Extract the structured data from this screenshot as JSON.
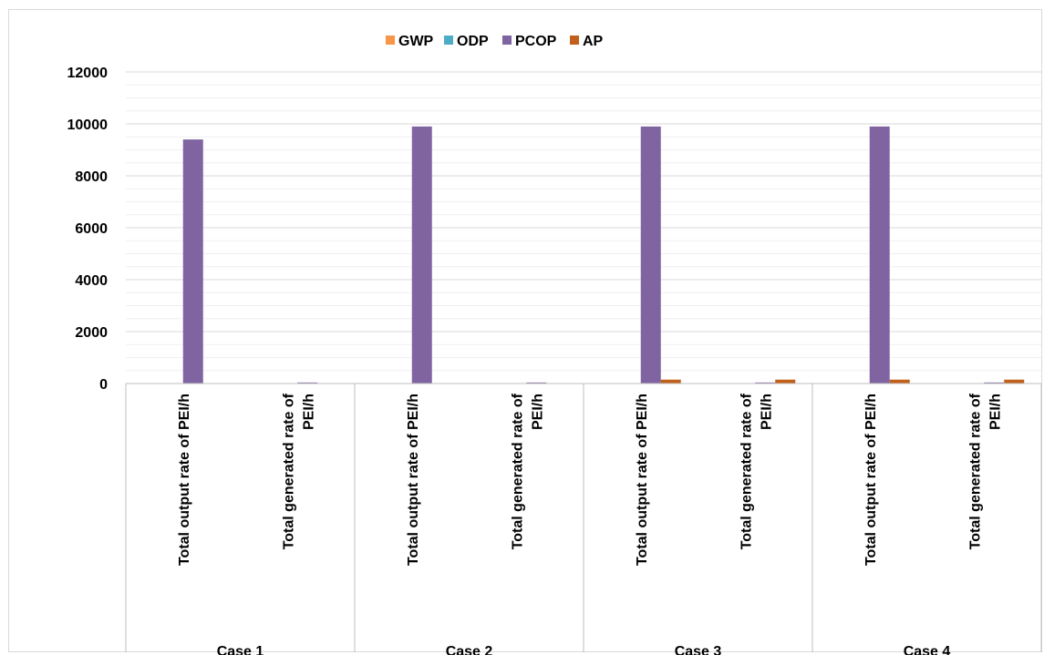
{
  "chart_data": {
    "type": "bar",
    "title": "",
    "legend_position": "top",
    "grid": true,
    "ylim": [
      0,
      12000
    ],
    "yticks": [
      "0",
      "2000",
      "4000",
      "6000",
      "8000",
      "10000",
      "12000"
    ],
    "groups": [
      "Case 1",
      "Case 2",
      "Case 3",
      "Case 4"
    ],
    "categories": [
      "Total output rate of PEI/h",
      "Total generated rate of PEI/h",
      "Total output rate of PEI/h",
      "Total generated rate of PEI/h",
      "Total output rate of PEI/h",
      "Total generated rate of PEI/h",
      "Total output rate of PEI/h",
      "Total generated rate of PEI/h"
    ],
    "category_lines": [
      [
        "Total output rate of PEI/h"
      ],
      [
        "Total generated rate of",
        "PEI/h"
      ]
    ],
    "series": [
      {
        "name": "GWP",
        "color": "#f79646",
        "values": [
          0,
          0,
          0,
          0,
          0,
          0,
          0,
          0
        ]
      },
      {
        "name": "ODP",
        "color": "#4bacc6",
        "values": [
          0,
          0,
          0,
          0,
          0,
          0,
          0,
          0
        ]
      },
      {
        "name": "PCOP",
        "color": "#8064a2",
        "values": [
          9400,
          40,
          9900,
          40,
          9900,
          40,
          9900,
          40
        ]
      },
      {
        "name": "AP",
        "color": "#c0601a",
        "values": [
          0,
          0,
          0,
          0,
          150,
          150,
          150,
          150
        ]
      }
    ]
  }
}
